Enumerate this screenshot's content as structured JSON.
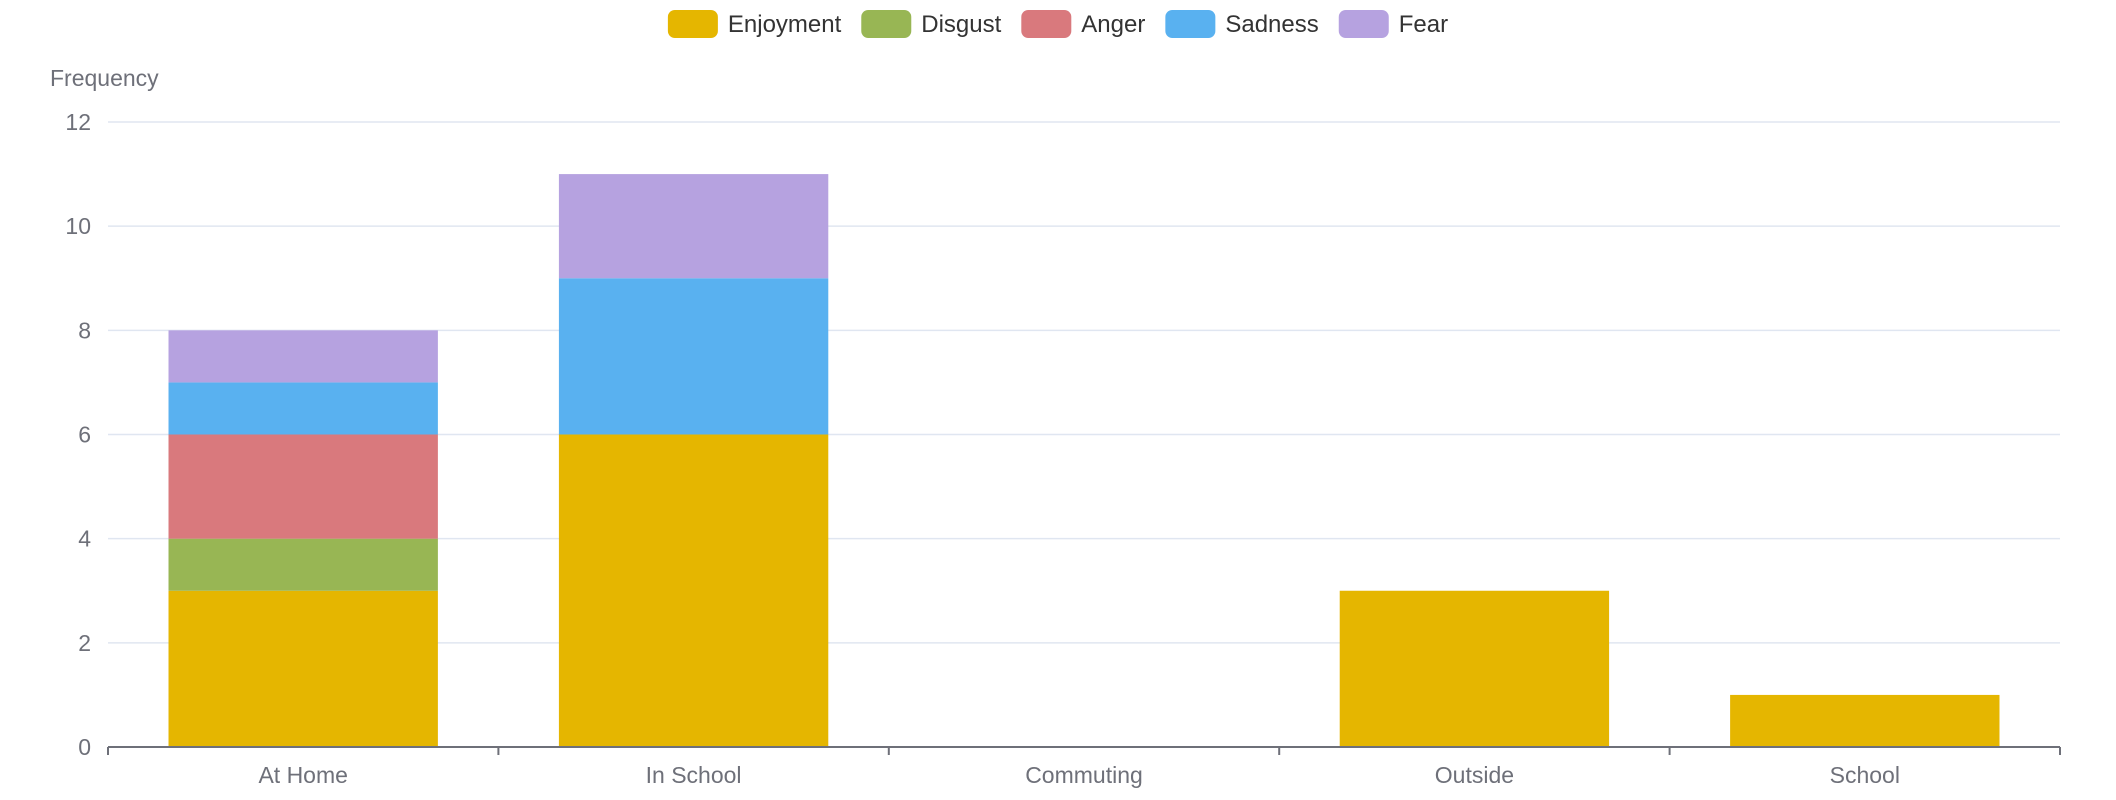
{
  "chart_data": {
    "type": "bar",
    "stacked": true,
    "categories": [
      "At Home",
      "In School",
      "Commuting",
      "Outside",
      "School"
    ],
    "series": [
      {
        "name": "Enjoyment",
        "color": "#e5b600",
        "values": [
          3,
          6,
          0,
          3,
          1
        ]
      },
      {
        "name": "Disgust",
        "color": "#98b654",
        "values": [
          1,
          0,
          0,
          0,
          0
        ]
      },
      {
        "name": "Anger",
        "color": "#d9797d",
        "values": [
          2,
          0,
          0,
          0,
          0
        ]
      },
      {
        "name": "Sadness",
        "color": "#59b1f0",
        "values": [
          1,
          3,
          0,
          0,
          0
        ]
      },
      {
        "name": "Fear",
        "color": "#b6a2e0",
        "values": [
          1,
          2,
          0,
          0,
          0
        ]
      }
    ],
    "ylabel": "Frequency",
    "ylim": [
      0,
      12
    ],
    "yticks": [
      0,
      2,
      4,
      6,
      8,
      10,
      12
    ],
    "grid": true,
    "legend_position": "top-center"
  }
}
